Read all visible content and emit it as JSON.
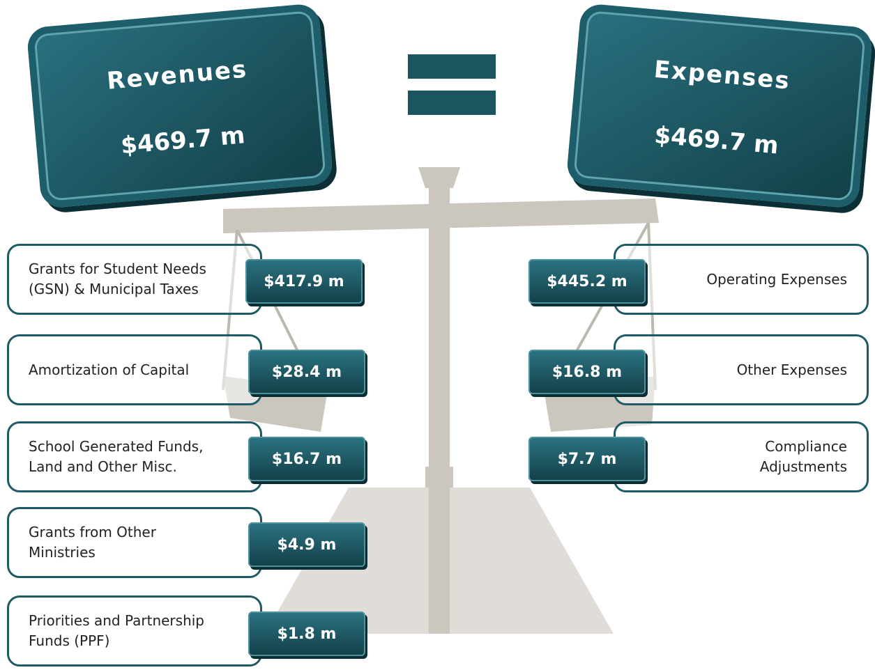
{
  "revenues": {
    "title": "Revenues",
    "total": "$469.7 m",
    "items": [
      {
        "lines": [
          "Grants for Student Needs",
          "(GSN) & Municipal Taxes"
        ],
        "amount": "$417.9 m"
      },
      {
        "lines": [
          "Amortization of Capital"
        ],
        "amount": "$28.4 m"
      },
      {
        "lines": [
          "School Generated Funds,",
          "Land and Other Misc."
        ],
        "amount": "$16.7 m"
      },
      {
        "lines": [
          "Grants from Other",
          "Ministries"
        ],
        "amount": "$4.9 m"
      },
      {
        "lines": [
          "Priorities and Partnership",
          "Funds (PPF)"
        ],
        "amount": "$1.8 m"
      }
    ]
  },
  "expenses": {
    "title": "Expenses",
    "total": "$469.7 m",
    "items": [
      {
        "lines": [
          "Operating Expenses"
        ],
        "amount": "$445.2 m"
      },
      {
        "lines": [
          "Other Expenses"
        ],
        "amount": "$16.8 m"
      },
      {
        "lines": [
          "Compliance",
          "Adjustments"
        ],
        "amount": "$7.7 m"
      }
    ]
  }
}
